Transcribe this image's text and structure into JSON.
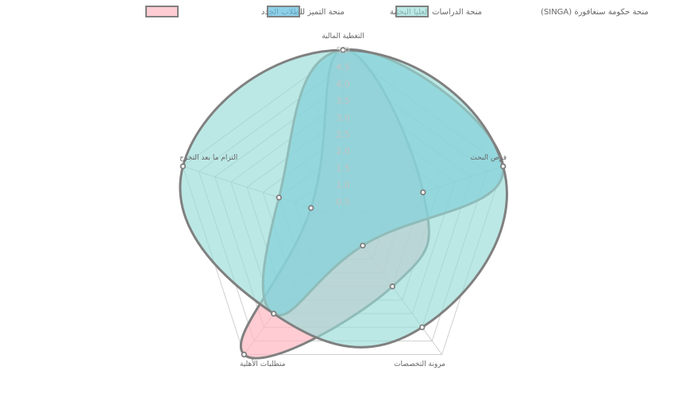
{
  "chart_data": {
    "type": "radar",
    "title": "",
    "axes": [
      "التغطية المالية",
      "فرص البحث",
      "مرونة التخصصات",
      "متطلبات الأهلية",
      "التزام ما بعد التخرج"
    ],
    "r_min": 0,
    "r_max": 5,
    "ticks": [
      "0.5",
      "1.0",
      "1.5",
      "2.0",
      "2.5",
      "3.0",
      "3.5",
      "4.0",
      "4.5",
      "5.0"
    ],
    "grid": true,
    "legend_position": "top",
    "series": [
      {
        "name": "منحة التميز للطلاب الجدد",
        "values": [
          5,
          2.5,
          2.5,
          5,
          1
        ],
        "fill": "rgba(255,182,193,0.7)",
        "stroke": "#808080"
      },
      {
        "name": "منحة الدراسات العليا البحثية",
        "values": [
          5,
          5,
          1,
          3.5,
          2
        ],
        "fill": "rgba(100,190,225,0.72)",
        "stroke": "#808080"
      },
      {
        "name": "منحة حكومة سنغافورة (SINGA)",
        "values": [
          5,
          5,
          4,
          3.5,
          5
        ],
        "fill": "rgba(150,220,215,0.65)",
        "stroke": "#808080"
      }
    ]
  }
}
